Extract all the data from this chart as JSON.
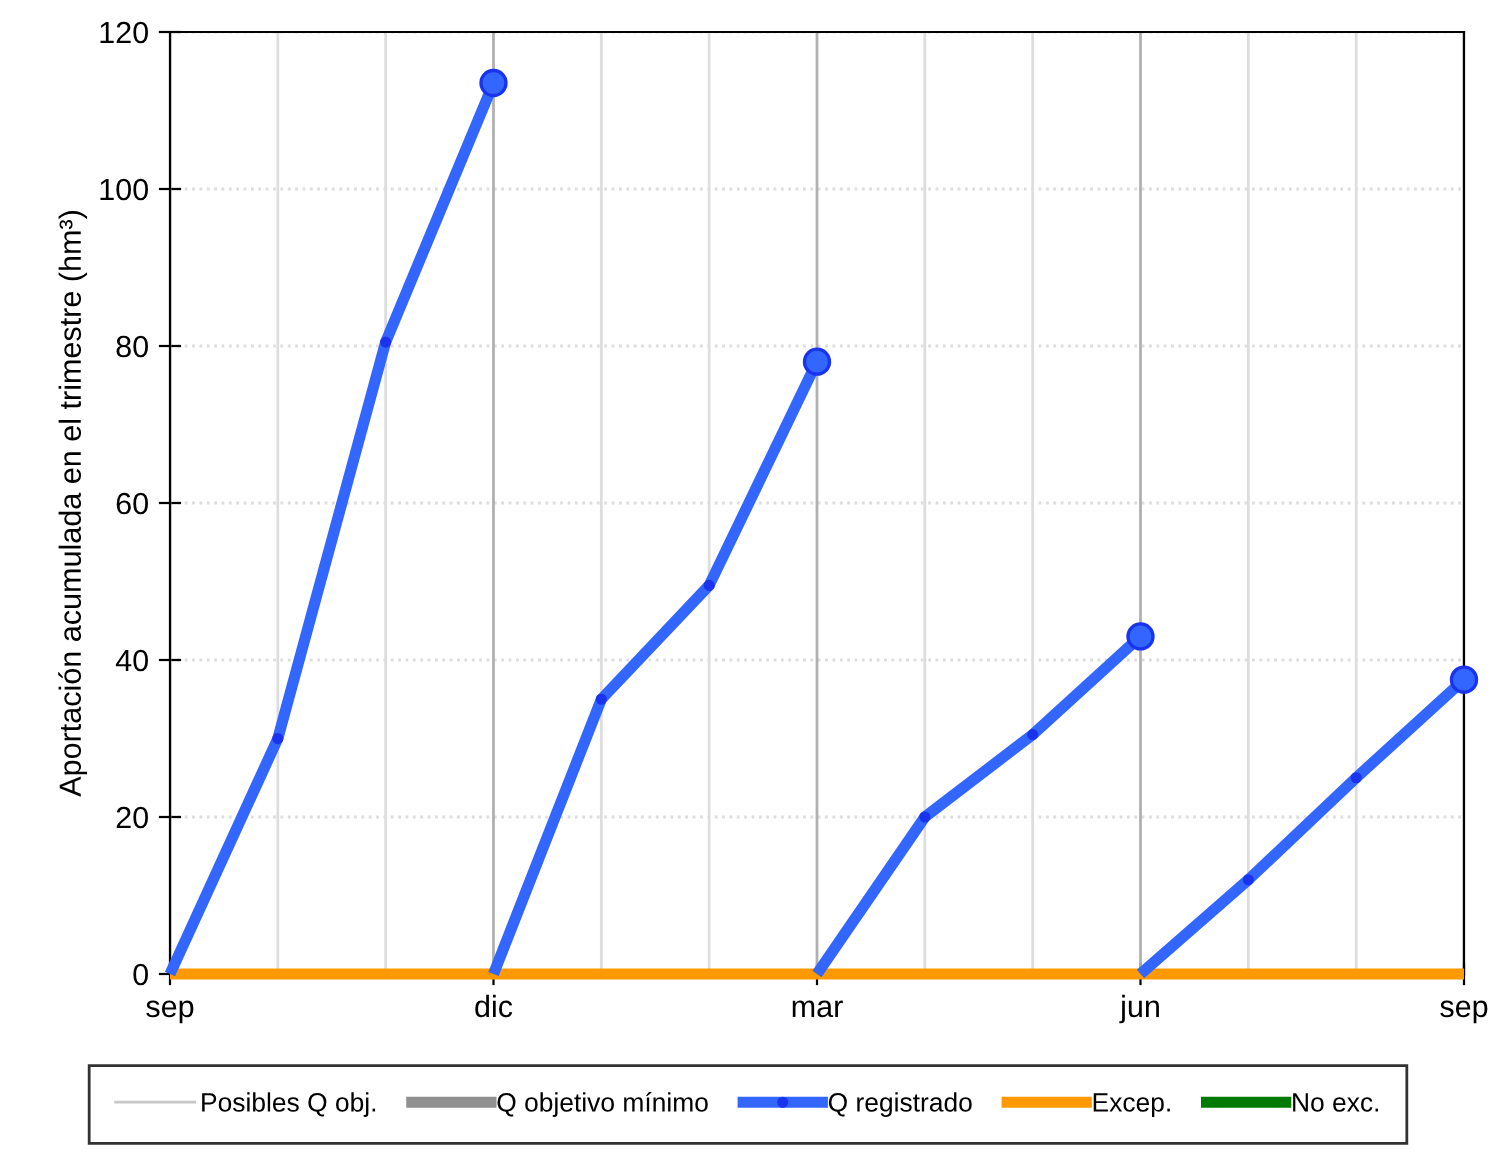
{
  "chart_data": {
    "type": "line",
    "ylabel": "Aportación acumulada en el trimestre (hm³)",
    "categories": [
      "sep",
      null,
      null,
      "dic",
      null,
      null,
      "mar",
      null,
      null,
      "jun",
      null,
      null,
      "sep"
    ],
    "ylim": [
      0,
      120
    ],
    "yticks": [
      0,
      20,
      40,
      60,
      80,
      100,
      120
    ],
    "grid": true,
    "legend": "bottom",
    "line_style": "solid",
    "series": [
      {
        "name": "Posibles Q obj.",
        "color": "#c8c8c8",
        "values": [
          null,
          null,
          null,
          null,
          null,
          null,
          null,
          null,
          null,
          null,
          null,
          null,
          null
        ]
      },
      {
        "name": "Q objetivo mínimo",
        "color": "#909090",
        "values": [
          null,
          null,
          null,
          null,
          null,
          null,
          null,
          null,
          null,
          null,
          null,
          null,
          null
        ]
      },
      {
        "name": "Q registrado",
        "color": "#3366ff",
        "marker": "circle",
        "values": [
          0,
          30,
          80.5,
          113.5,
          null,
          null,
          null,
          null,
          null,
          null,
          null,
          null,
          null
        ]
      },
      {
        "color": "#3366ff",
        "marker": "circle",
        "values": [
          null,
          null,
          null,
          0,
          35,
          49.5,
          78,
          null,
          null,
          null,
          null,
          null,
          null
        ]
      },
      {
        "color": "#3366ff",
        "marker": "circle",
        "values": [
          null,
          null,
          null,
          null,
          null,
          null,
          0,
          20,
          30.5,
          43,
          null,
          null,
          null
        ]
      },
      {
        "color": "#3366ff",
        "marker": "circle",
        "values": [
          null,
          null,
          null,
          null,
          null,
          null,
          null,
          null,
          null,
          0,
          12,
          25,
          37.5
        ]
      },
      {
        "name": "Excep.",
        "color": "#ff9900",
        "values": [
          0,
          0,
          0,
          0,
          0,
          0,
          0,
          0,
          0,
          0,
          0,
          0,
          0
        ]
      },
      {
        "name": "No exc.",
        "color": "#007a00",
        "values": [
          null,
          null,
          null,
          null,
          null,
          null,
          null,
          null,
          null,
          null,
          null,
          null,
          null
        ]
      }
    ]
  }
}
